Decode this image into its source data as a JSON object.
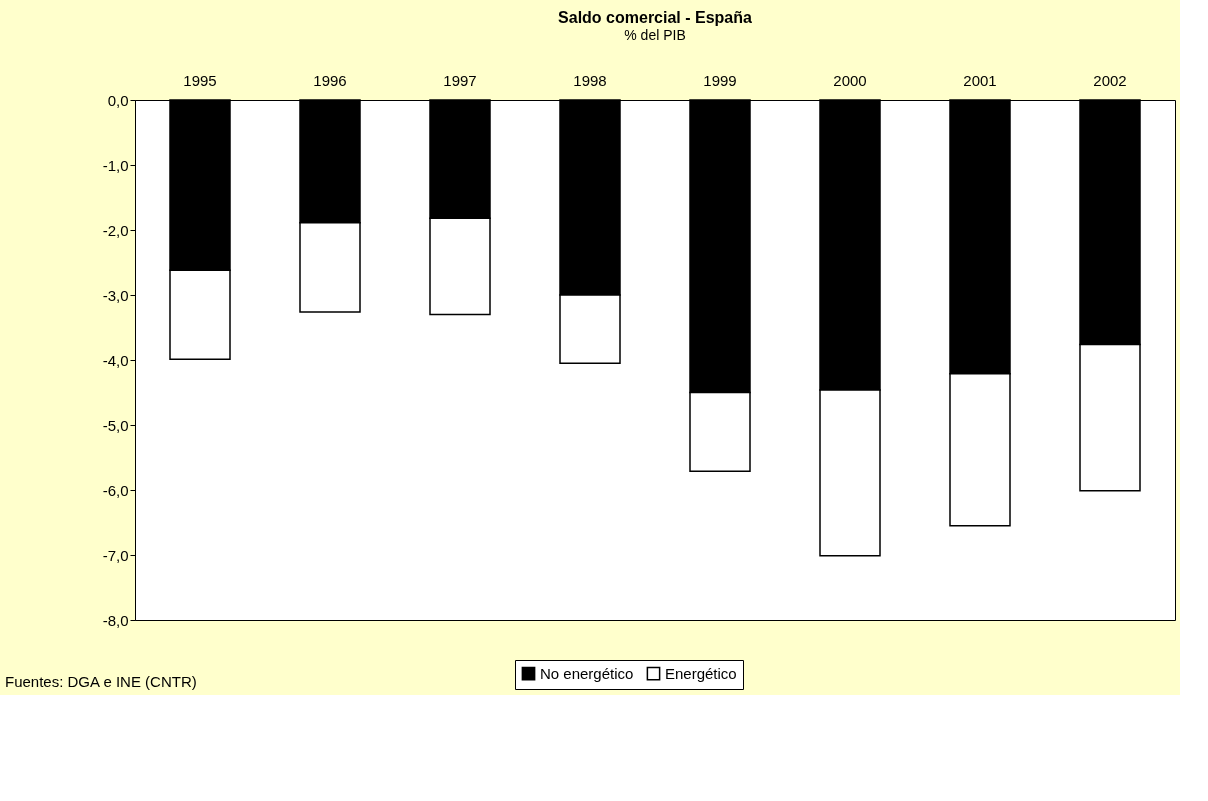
{
  "chart_data": {
    "type": "bar",
    "stacked": true,
    "title": "Saldo comercial - España",
    "subtitle": "% del PIB",
    "categories": [
      "1995",
      "1996",
      "1997",
      "1998",
      "1999",
      "2000",
      "2001",
      "2002"
    ],
    "series": [
      {
        "name": "No energético",
        "color": "#000000",
        "values": [
          -2.62,
          -1.89,
          -1.82,
          -3.0,
          -4.5,
          -4.46,
          -4.21,
          -3.76
        ]
      },
      {
        "name": "Energético",
        "color": "#ffffff",
        "values": [
          -1.37,
          -1.37,
          -1.48,
          -1.05,
          -1.21,
          -2.55,
          -2.34,
          -2.25
        ]
      }
    ],
    "ylim": [
      -8,
      0
    ],
    "yticks": [
      {
        "value": 0,
        "label": "0,0"
      },
      {
        "value": -1,
        "label": "-1,0"
      },
      {
        "value": -2,
        "label": "-2,0"
      },
      {
        "value": -3,
        "label": "-3,0"
      },
      {
        "value": -4,
        "label": "-4,0"
      },
      {
        "value": -5,
        "label": "-5,0"
      },
      {
        "value": -6,
        "label": "-6,0"
      },
      {
        "value": -7,
        "label": "-7,0"
      },
      {
        "value": -8,
        "label": "-8,0"
      }
    ],
    "grid": false,
    "legend": "bottom",
    "annotations": [
      "Fuentes: DGA e INE (CNTR)"
    ]
  }
}
